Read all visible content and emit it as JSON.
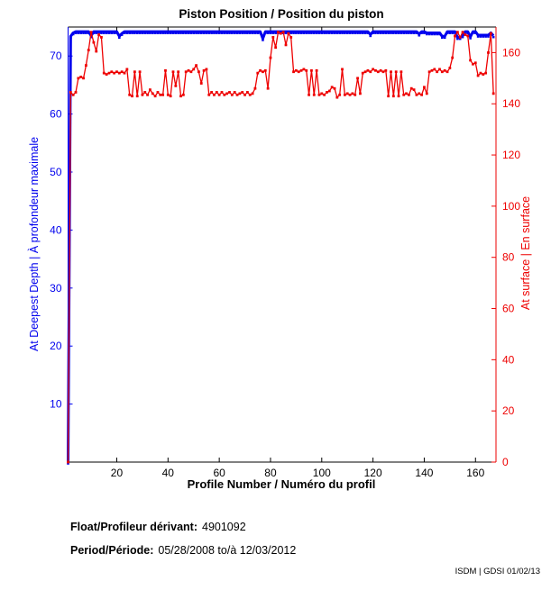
{
  "chart_data": {
    "type": "line",
    "title": "Piston Position / Position du piston",
    "xlabel": "Profile Number / Numéro du profil",
    "ylabel_left": "At Deepest Depth | À profondeur maximale",
    "ylabel_right": "At surface | En surface",
    "xlim": [
      1,
      168
    ],
    "ylim_left": [
      0,
      75
    ],
    "ylim_right": [
      0,
      170
    ],
    "xticks": [
      20,
      40,
      60,
      80,
      100,
      120,
      140,
      160
    ],
    "yticks_left": [
      10,
      20,
      30,
      40,
      50,
      60,
      70
    ],
    "yticks_right": [
      0,
      20,
      40,
      60,
      80,
      100,
      120,
      140,
      160
    ],
    "grid": false,
    "legend": "none",
    "axis_colors": {
      "left": "#0000ee",
      "right": "#ee0000",
      "bottom": "#000000",
      "top": "#000000"
    },
    "series": [
      {
        "name": "piston-at-deepest-depth",
        "axis": "left",
        "color": "#0000ee",
        "line_width": 3,
        "marker_size": 2.6,
        "marker_dy": 1.5,
        "x_start": 1,
        "values": [
          0,
          73.4,
          74,
          74.2,
          74.2,
          74.2,
          74.2,
          74.2,
          74.2,
          73.5,
          74.2,
          74.2,
          74.2,
          74.2,
          74.2,
          74.2,
          74.2,
          74.2,
          74.2,
          74.2,
          73.4,
          73.9,
          74.2,
          74.2,
          74.2,
          74.2,
          74.2,
          74.2,
          74.2,
          74.2,
          74.2,
          74.2,
          74.2,
          74.2,
          74.2,
          74.2,
          74.2,
          74.2,
          74.2,
          74.2,
          74.2,
          74.2,
          74.2,
          74.2,
          74.2,
          74.2,
          74.2,
          74.2,
          74.2,
          74.2,
          74.2,
          74.2,
          74.2,
          74.2,
          74.2,
          74.2,
          74.2,
          74.2,
          74.2,
          74.2,
          74.2,
          74.2,
          74.2,
          74.2,
          74.2,
          74.2,
          74.2,
          74.2,
          74.2,
          74.2,
          74.2,
          74.2,
          74.2,
          74.2,
          74.2,
          74.2,
          73,
          74.2,
          74.2,
          74.2,
          74.2,
          74.2,
          74.2,
          74.2,
          74.2,
          74.2,
          74.2,
          74.2,
          74.2,
          74.2,
          74.2,
          74.2,
          74.2,
          74.2,
          74.2,
          74.2,
          74.2,
          74.2,
          74.2,
          74.2,
          74.2,
          74.2,
          74.2,
          74.2,
          74.2,
          74.2,
          74.2,
          74.2,
          74.2,
          74.2,
          74.2,
          74.2,
          74.2,
          74.2,
          74.2,
          74.2,
          74.2,
          74.2,
          73.7,
          74.2,
          74.2,
          74.2,
          74.2,
          74.2,
          74.2,
          74.2,
          74.2,
          74.2,
          74.2,
          74.2,
          74.2,
          74.2,
          74.2,
          74.2,
          74.2,
          74.2,
          74.2,
          73.8,
          74.2,
          74.2,
          74,
          74,
          74,
          74,
          74,
          74,
          73.4,
          73.4,
          74.2,
          74.2,
          74.2,
          74.2,
          73.2,
          73.2,
          73.5,
          74.2,
          74.2,
          73.3,
          74.2,
          74.2,
          73.6,
          73.6,
          73.6,
          73.6,
          73.6,
          74,
          73.5
        ]
      },
      {
        "name": "piston-at-surface",
        "axis": "right",
        "color": "#ee0000",
        "line_width": 1.3,
        "marker_size": 2.8,
        "marker_dy": 0,
        "x_start": 1,
        "values": [
          0,
          144.5,
          143.5,
          144.5,
          150,
          150.5,
          150,
          155,
          161,
          168,
          164,
          160.5,
          167,
          166,
          152,
          151.5,
          152,
          152.5,
          152,
          152.5,
          152,
          152.5,
          152,
          153.5,
          143.5,
          143,
          152.5,
          143,
          152.5,
          143.5,
          144.5,
          143.5,
          145.5,
          144,
          143,
          144.5,
          143.5,
          143.5,
          153,
          143.5,
          143,
          152.5,
          147,
          152.5,
          143,
          143.5,
          152.5,
          153,
          152.5,
          153.5,
          155,
          152.5,
          148,
          153,
          153.5,
          143.5,
          144.5,
          143.5,
          144.5,
          143.5,
          144.5,
          143.5,
          144,
          144.5,
          143.5,
          144.5,
          143.5,
          144,
          144.5,
          143.5,
          144.5,
          143.5,
          144,
          146,
          152,
          153,
          152.5,
          153,
          146,
          158,
          166,
          162,
          168,
          167.5,
          168,
          163,
          167.5,
          166,
          152.5,
          153,
          152.5,
          153,
          153.5,
          153,
          143.5,
          153,
          143.5,
          153,
          143.5,
          144,
          143.5,
          144.5,
          145,
          146.5,
          146,
          142.5,
          143.5,
          153.5,
          143.5,
          144,
          143.5,
          144,
          143.5,
          150,
          144,
          152,
          152.5,
          153,
          152.5,
          153.5,
          153,
          152.5,
          153,
          152.5,
          153,
          143,
          152.5,
          143,
          152.5,
          143,
          152.5,
          143.5,
          144,
          143.5,
          146,
          145.5,
          143.5,
          144,
          143.5,
          146.5,
          144,
          152.5,
          153,
          153.5,
          152.5,
          153.5,
          152.5,
          153,
          152.5,
          154,
          158,
          166.5,
          168,
          166,
          168,
          167,
          166.5,
          157,
          155.5,
          156,
          151,
          152,
          151.5,
          152,
          160,
          167.5,
          144
        ]
      }
    ]
  },
  "info": {
    "float_label": "Float/Profileur dérivant:",
    "float_value": "4901092",
    "period_label": "Period/Période:",
    "period_value": "05/28/2008  to/à  12/03/2012"
  },
  "footer": {
    "stamp": "ISDM | GDSI 01/02/13"
  }
}
